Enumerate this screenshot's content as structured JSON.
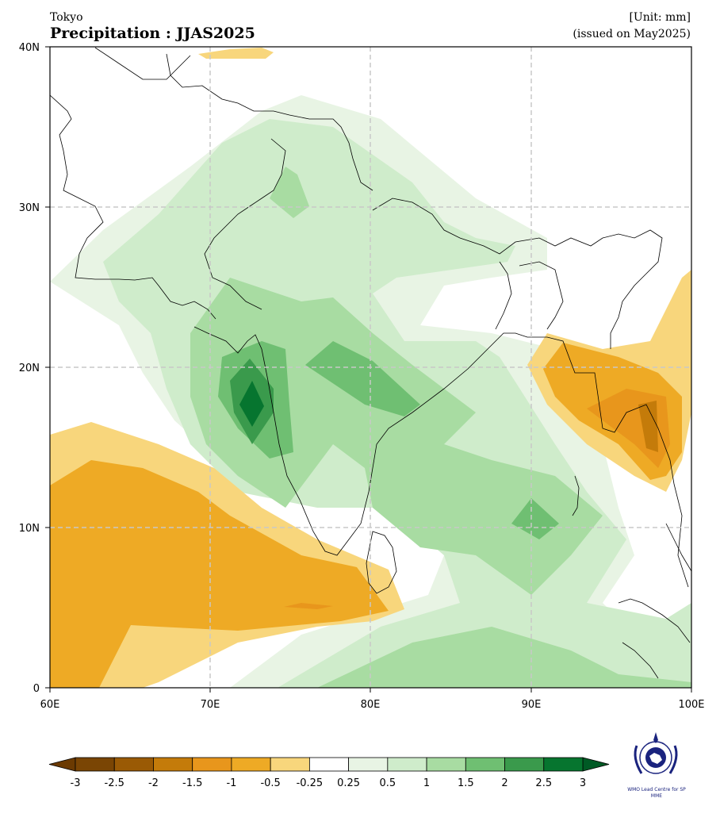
{
  "header": {
    "center": "Tokyo",
    "title": "Precipitation : JJAS2025",
    "unit": "[Unit: mm]",
    "issued": "(issued on May2025)"
  },
  "map": {
    "lon_range": [
      60,
      100
    ],
    "lat_range": [
      0,
      40
    ],
    "x_ticks": [
      "60E",
      "70E",
      "80E",
      "90E",
      "100E"
    ],
    "y_ticks": [
      "40N",
      "30N",
      "20N",
      "10N",
      "0"
    ],
    "grid": "dashed",
    "field": "precipitation anomaly"
  },
  "colorbar": {
    "labels": [
      "-3",
      "-2.5",
      "-2",
      "-1.5",
      "-1",
      "-0.5",
      "-0.25",
      "0.25",
      "0.5",
      "1",
      "1.5",
      "2",
      "2.5",
      "3"
    ],
    "colors": [
      "#7a4504",
      "#9a5a05",
      "#c47b0a",
      "#e8961c",
      "#eeaa25",
      "#f8d67c",
      "#ffffff",
      "#e8f4e4",
      "#cfeccb",
      "#a8dca2",
      "#6fbf72",
      "#3a9a4c",
      "#06752f"
    ],
    "extend_low_color": "#6b3a02",
    "extend_high_color": "#005a25"
  },
  "logo": {
    "caption": "WMO Lead Centre for SP MME"
  }
}
